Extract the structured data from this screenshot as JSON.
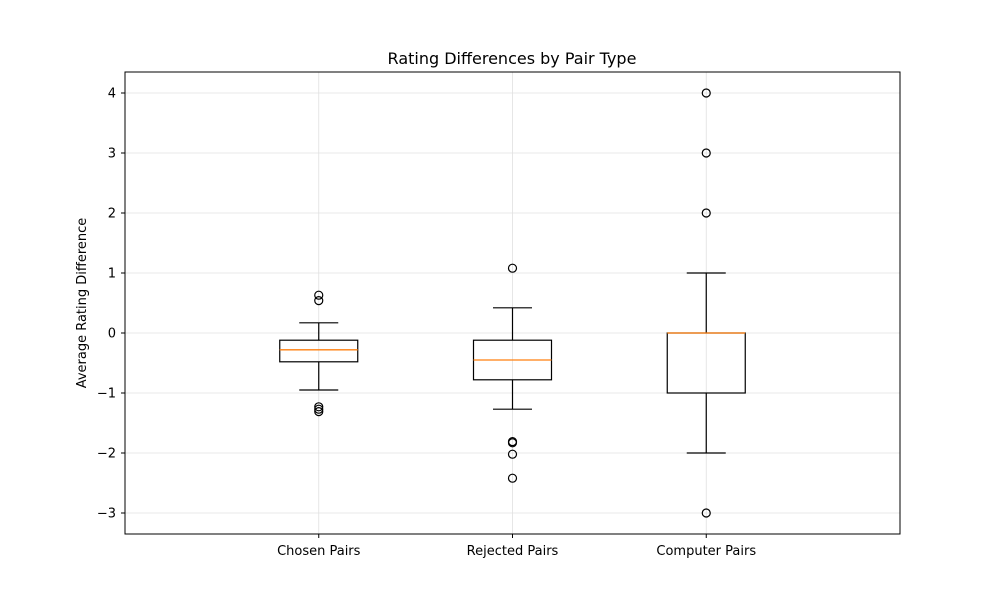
{
  "chart_data": {
    "type": "box",
    "title": "Rating Differences by Pair Type",
    "xlabel": "",
    "ylabel": "Average Rating Difference",
    "categories": [
      "Chosen Pairs",
      "Rejected Pairs",
      "Computer Pairs"
    ],
    "ylim": [
      -3.35,
      4.35
    ],
    "yticks": [
      -3,
      -2,
      -1,
      0,
      1,
      2,
      3,
      4
    ],
    "ytick_labels": [
      "−3",
      "−2",
      "−1",
      "0",
      "1",
      "2",
      "3",
      "4"
    ],
    "grid": true,
    "boxes": [
      {
        "name": "Chosen Pairs",
        "whisker_low": -0.95,
        "q1": -0.48,
        "median": -0.28,
        "q3": -0.12,
        "whisker_high": 0.17,
        "outliers": [
          0.63,
          0.54,
          -1.23,
          -1.27,
          -1.31
        ]
      },
      {
        "name": "Rejected Pairs",
        "whisker_low": -1.27,
        "q1": -0.78,
        "median": -0.45,
        "q3": -0.12,
        "whisker_high": 0.42,
        "outliers": [
          1.08,
          -1.81,
          -1.83,
          -2.02,
          -2.42
        ]
      },
      {
        "name": "Computer Pairs",
        "whisker_low": -2.0,
        "q1": -1.0,
        "median": 0.0,
        "q3": 0.0,
        "whisker_high": 1.0,
        "outliers": [
          4.0,
          3.0,
          2.0,
          -3.0
        ]
      }
    ],
    "colors": {
      "box": "#000000",
      "median": "#ff7f0e",
      "grid": "#e0e0e0"
    }
  }
}
